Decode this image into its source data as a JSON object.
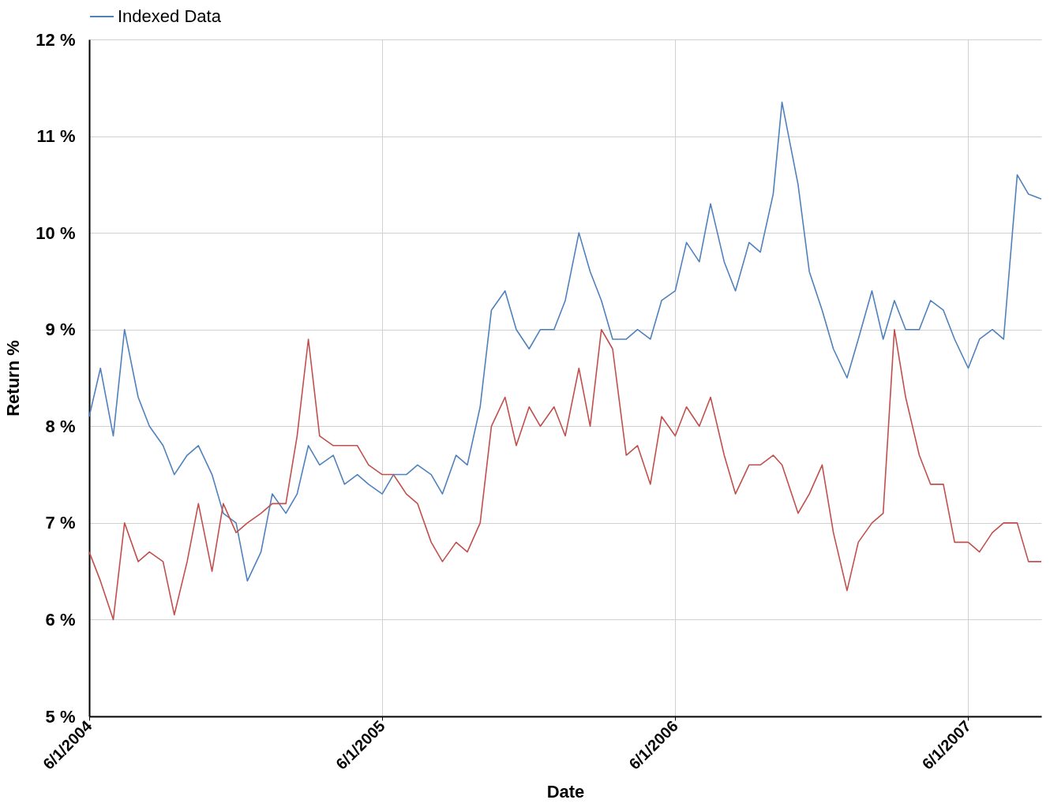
{
  "chart_data": {
    "type": "line",
    "xlabel": "Date",
    "ylabel": "Return %",
    "x": [
      "2004-06-01",
      "2004-06-15",
      "2004-07-01",
      "2004-07-15",
      "2004-08-01",
      "2004-08-15",
      "2004-09-01",
      "2004-09-15",
      "2004-10-01",
      "2004-10-15",
      "2004-11-01",
      "2004-11-15",
      "2004-12-01",
      "2004-12-15",
      "2005-01-01",
      "2005-01-15",
      "2005-02-01",
      "2005-02-15",
      "2005-03-01",
      "2005-03-15",
      "2005-04-01",
      "2005-04-15",
      "2005-05-01",
      "2005-05-15",
      "2005-06-01",
      "2005-06-15",
      "2005-07-01",
      "2005-07-15",
      "2005-08-01",
      "2005-08-15",
      "2005-09-01",
      "2005-09-15",
      "2005-10-01",
      "2005-10-15",
      "2005-11-01",
      "2005-11-15",
      "2005-12-01",
      "2005-12-15",
      "2006-01-01",
      "2006-01-15",
      "2006-02-01",
      "2006-02-15",
      "2006-03-01",
      "2006-03-15",
      "2006-04-01",
      "2006-04-15",
      "2006-05-01",
      "2006-05-15",
      "2006-06-01",
      "2006-06-15",
      "2006-07-01",
      "2006-07-15",
      "2006-08-01",
      "2006-08-15",
      "2006-09-01",
      "2006-09-15",
      "2006-10-01",
      "2006-10-12",
      "2006-11-01",
      "2006-11-15",
      "2006-12-01",
      "2006-12-15",
      "2007-01-01",
      "2007-01-15",
      "2007-02-01",
      "2007-02-15",
      "2007-03-01",
      "2007-03-15",
      "2007-04-01",
      "2007-04-15",
      "2007-05-01",
      "2007-05-15",
      "2007-06-01",
      "2007-06-15",
      "2007-07-01",
      "2007-07-15",
      "2007-08-01",
      "2007-08-15",
      "2007-08-31"
    ],
    "series": [
      {
        "name": "Indexed Data",
        "color": "#4f81bd",
        "values": [
          8.1,
          8.6,
          7.9,
          9.0,
          8.3,
          8.0,
          7.8,
          7.5,
          7.7,
          7.8,
          7.5,
          7.1,
          7.0,
          6.4,
          6.7,
          7.3,
          7.1,
          7.3,
          7.8,
          7.6,
          7.7,
          7.4,
          7.5,
          7.4,
          7.3,
          7.5,
          7.5,
          7.6,
          7.5,
          7.3,
          7.7,
          7.6,
          8.2,
          9.2,
          9.4,
          9.0,
          8.8,
          9.0,
          9.0,
          9.3,
          10.0,
          9.6,
          9.3,
          8.9,
          8.9,
          9.0,
          8.9,
          9.3,
          9.4,
          9.9,
          9.7,
          10.3,
          9.7,
          9.4,
          9.9,
          9.8,
          10.4,
          11.35,
          10.5,
          9.6,
          9.2,
          8.8,
          8.5,
          8.9,
          9.4,
          8.9,
          9.3,
          9.0,
          9.0,
          9.3,
          9.2,
          8.9,
          8.6,
          8.9,
          9.0,
          8.9,
          10.6,
          10.4,
          10.35
        ]
      },
      {
        "color": "#c0504d",
        "values": [
          6.7,
          6.4,
          6.0,
          7.0,
          6.6,
          6.7,
          6.6,
          6.05,
          6.6,
          7.2,
          6.5,
          7.2,
          6.9,
          7.0,
          7.1,
          7.2,
          7.2,
          7.9,
          8.9,
          7.9,
          7.8,
          7.8,
          7.8,
          7.6,
          7.5,
          7.5,
          7.3,
          7.2,
          6.8,
          6.6,
          6.8,
          6.7,
          7.0,
          8.0,
          8.3,
          7.8,
          8.2,
          8.0,
          8.2,
          7.9,
          8.6,
          8.0,
          9.0,
          8.8,
          7.7,
          7.8,
          7.4,
          8.1,
          7.9,
          8.2,
          8.0,
          8.3,
          7.7,
          7.3,
          7.6,
          7.6,
          7.7,
          7.6,
          7.1,
          7.3,
          7.6,
          6.9,
          6.3,
          6.8,
          7.0,
          7.1,
          9.0,
          8.3,
          7.7,
          7.4,
          7.4,
          6.8,
          6.8,
          6.7,
          6.9,
          7.0,
          7.0,
          6.6,
          6.6
        ]
      }
    ],
    "xlim": [
      "2004-06-01",
      "2007-08-31"
    ],
    "xticks": [
      {
        "value": "2004-06-01",
        "label": "6/1/2004"
      },
      {
        "value": "2005-06-01",
        "label": "6/1/2005"
      },
      {
        "value": "2006-06-01",
        "label": "6/1/2006"
      },
      {
        "value": "2007-06-01",
        "label": "6/1/2007"
      }
    ],
    "ylim": [
      5,
      12
    ],
    "yticks": [
      {
        "value": 5,
        "label": "5 %"
      },
      {
        "value": 6,
        "label": "6 %"
      },
      {
        "value": 7,
        "label": "7 %"
      },
      {
        "value": 8,
        "label": "8 %"
      },
      {
        "value": 9,
        "label": "9 %"
      },
      {
        "value": 10,
        "label": "10 %"
      },
      {
        "value": 11,
        "label": "11 %"
      },
      {
        "value": 12,
        "label": "12 %"
      }
    ],
    "grid": true,
    "legend": "top",
    "line_style": "solid",
    "marker": "none"
  }
}
